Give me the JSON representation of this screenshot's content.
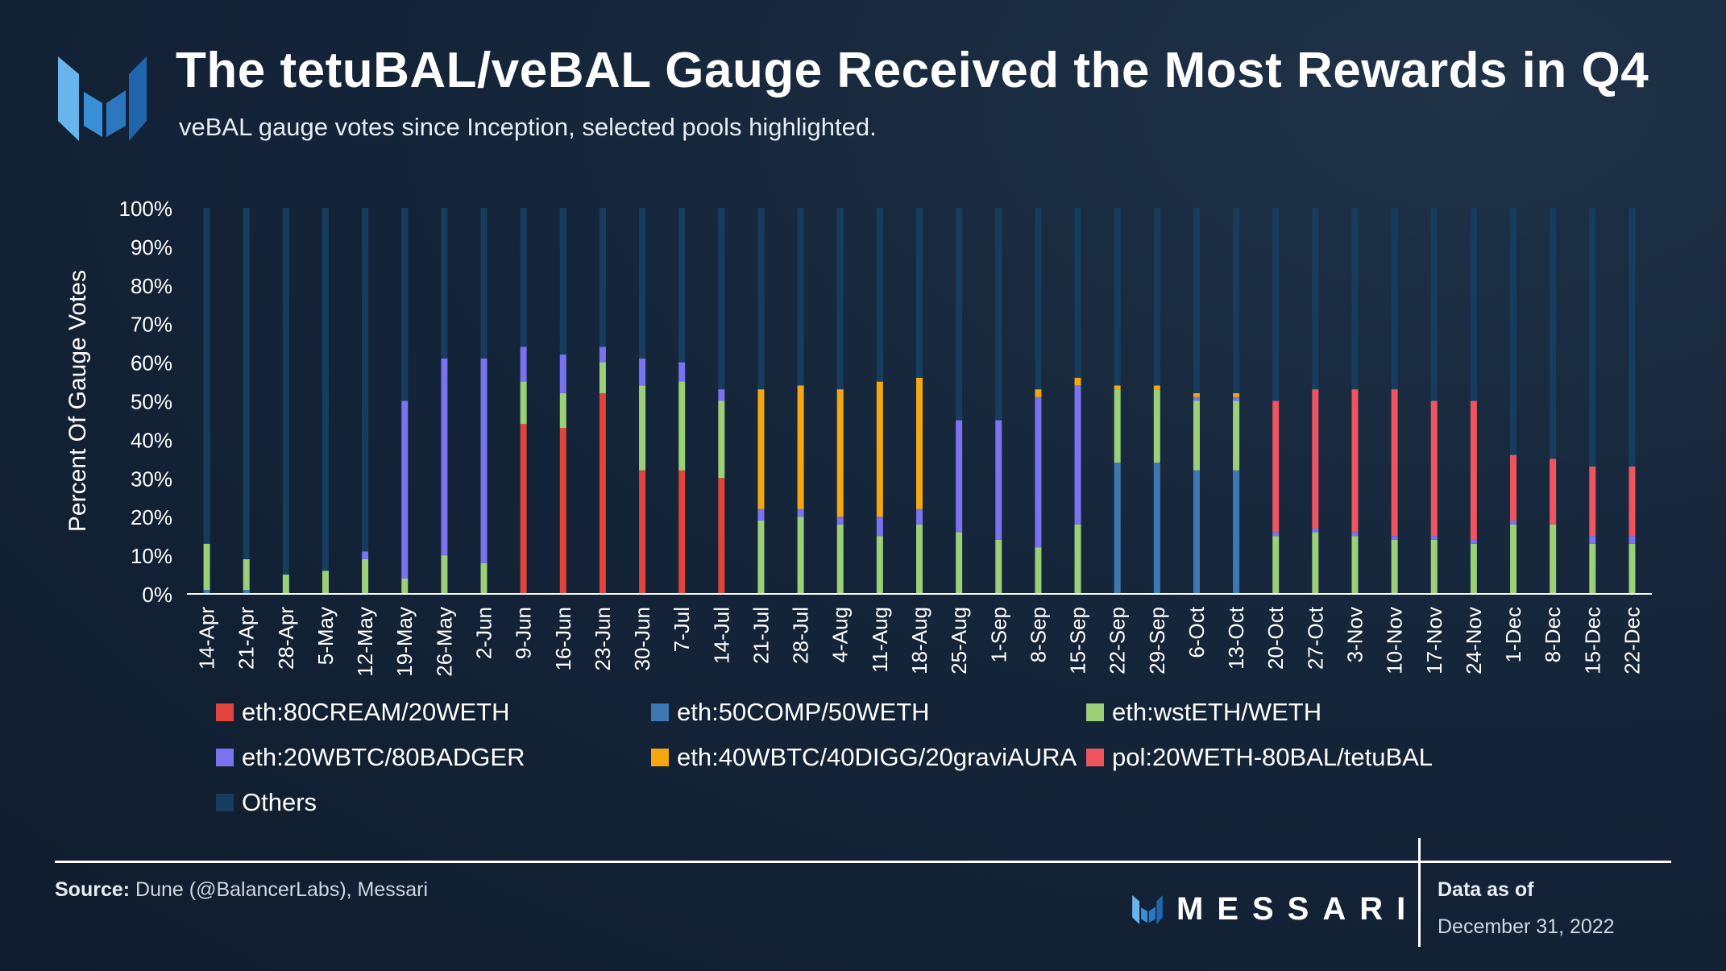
{
  "header": {
    "title": "The tetuBAL/veBAL Gauge Received the Most Rewards in Q4",
    "subtitle": "veBAL gauge votes since Inception, selected pools highlighted."
  },
  "footer": {
    "source_label": "Source:",
    "source_text": " Dune (@BalancerLabs), Messari",
    "brand": "MESSARI",
    "asof_label": "Data as of",
    "asof_date": "December 31, 2022"
  },
  "colors": {
    "eth:80CREAM/20WETH": "#e0443a",
    "eth:50COMP/50WETH": "#3e78b3",
    "eth:wstETH/WETH": "#9bcf78",
    "eth:20WBTC/80BADGER": "#7a73f0",
    "eth:40WBTC/40DIGG/20graviAURA": "#f5a712",
    "pol:20WETH-80BAL/tetuBAL": "#ee5560",
    "Others": "#173d5e"
  },
  "chart_data": {
    "type": "bar",
    "stacked": true,
    "ylabel": "Percent Of Gauge Votes",
    "ylim": [
      0,
      100
    ],
    "yticks": [
      "0%",
      "10%",
      "20%",
      "30%",
      "40%",
      "50%",
      "60%",
      "70%",
      "80%",
      "90%",
      "100%"
    ],
    "legend_position": "bottom",
    "categories": [
      "14-Apr",
      "21-Apr",
      "28-Apr",
      "5-May",
      "12-May",
      "19-May",
      "26-May",
      "2-Jun",
      "9-Jun",
      "16-Jun",
      "23-Jun",
      "30-Jun",
      "7-Jul",
      "14-Jul",
      "21-Jul",
      "28-Jul",
      "4-Aug",
      "11-Aug",
      "18-Aug",
      "25-Aug",
      "1-Sep",
      "8-Sep",
      "15-Sep",
      "22-Sep",
      "29-Sep",
      "6-Oct",
      "13-Oct",
      "20-Oct",
      "27-Oct",
      "3-Nov",
      "10-Nov",
      "17-Nov",
      "24-Nov",
      "1-Dec",
      "8-Dec",
      "15-Dec",
      "22-Dec"
    ],
    "series": [
      {
        "name": "eth:80CREAM/20WETH",
        "values": [
          0,
          0,
          0,
          0,
          0,
          0,
          0,
          0,
          44,
          43,
          52,
          32,
          32,
          30,
          0,
          0,
          0,
          0,
          0,
          0,
          0,
          0,
          0,
          0,
          0,
          0,
          0,
          0,
          0,
          0,
          0,
          0,
          0,
          0,
          0,
          0,
          0
        ]
      },
      {
        "name": "eth:50COMP/50WETH",
        "values": [
          1,
          1,
          0,
          0,
          0,
          0,
          0,
          0,
          0,
          0,
          0,
          0,
          0,
          0,
          0,
          0,
          0,
          0,
          0,
          0,
          0,
          0,
          0,
          34,
          34,
          32,
          32,
          0,
          0,
          0,
          0,
          0,
          0,
          0,
          0,
          0,
          0
        ]
      },
      {
        "name": "eth:wstETH/WETH",
        "values": [
          12,
          8,
          5,
          6,
          9,
          4,
          10,
          8,
          11,
          9,
          8,
          22,
          23,
          20,
          19,
          20,
          18,
          15,
          18,
          16,
          14,
          12,
          18,
          19,
          19,
          18,
          18,
          15,
          16,
          15,
          14,
          14,
          13,
          18,
          18,
          13,
          13
        ]
      },
      {
        "name": "eth:20WBTC/80BADGER",
        "values": [
          0,
          0,
          0,
          0,
          2,
          46,
          51,
          53,
          9,
          10,
          4,
          7,
          5,
          3,
          3,
          2,
          2,
          5,
          4,
          29,
          31,
          39,
          36,
          0,
          0,
          1,
          1,
          1,
          1,
          1,
          1,
          1,
          1,
          1,
          0,
          2,
          2
        ]
      },
      {
        "name": "eth:40WBTC/40DIGG/20graviAURA",
        "values": [
          0,
          0,
          0,
          0,
          0,
          0,
          0,
          0,
          0,
          0,
          0,
          0,
          0,
          0,
          31,
          32,
          33,
          35,
          34,
          0,
          0,
          2,
          2,
          1,
          1,
          1,
          1,
          0,
          0,
          0,
          0,
          0,
          0,
          0,
          0,
          0,
          0
        ]
      },
      {
        "name": "pol:20WETH-80BAL/tetuBAL",
        "values": [
          0,
          0,
          0,
          0,
          0,
          0,
          0,
          0,
          0,
          0,
          0,
          0,
          0,
          0,
          0,
          0,
          0,
          0,
          0,
          0,
          0,
          0,
          0,
          0,
          0,
          0,
          0,
          34,
          36,
          37,
          38,
          35,
          36,
          17,
          17,
          18,
          18
        ]
      },
      {
        "name": "Others",
        "values": [
          87,
          91,
          95,
          94,
          89,
          50,
          39,
          39,
          36,
          38,
          36,
          39,
          40,
          47,
          47,
          46,
          47,
          45,
          44,
          55,
          55,
          47,
          44,
          46,
          46,
          48,
          48,
          50,
          47,
          47,
          47,
          50,
          50,
          64,
          65,
          67,
          67
        ]
      }
    ]
  }
}
